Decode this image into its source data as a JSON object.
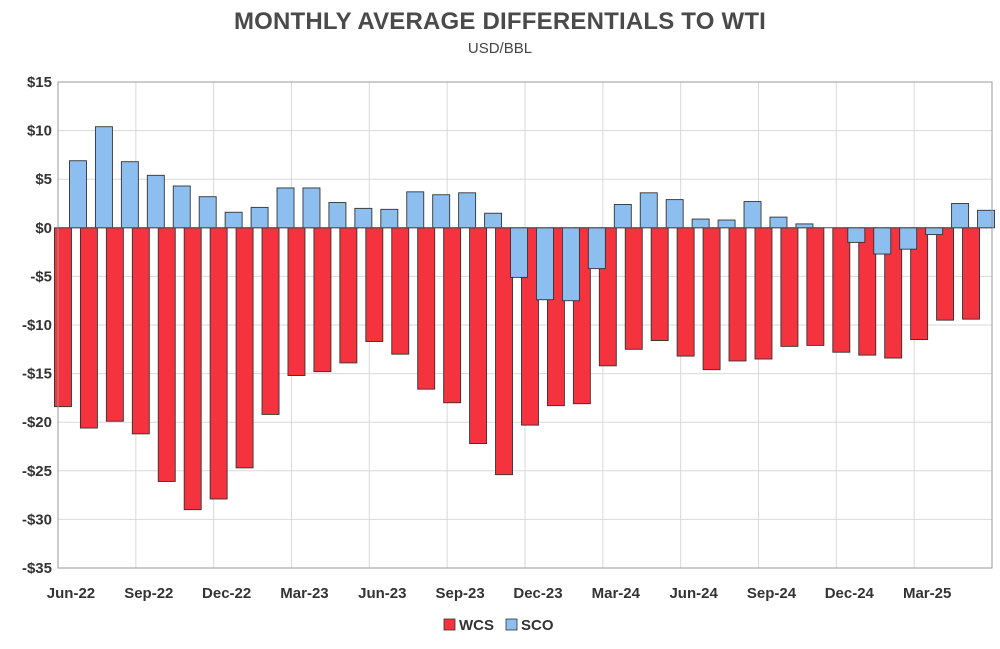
{
  "chart_data": {
    "type": "bar",
    "title": "MONTHLY AVERAGE DIFFERENTIALS TO WTI",
    "subtitle": "USD/BBL",
    "xlabel": "",
    "ylabel": "",
    "ylim": [
      -35,
      15
    ],
    "yticks": [
      15,
      10,
      5,
      0,
      -5,
      -10,
      -15,
      -20,
      -25,
      -30,
      -35
    ],
    "ytick_labels": [
      "$15",
      "$10",
      "$5",
      "$0",
      "-$5",
      "-$10",
      "-$15",
      "-$20",
      "-$25",
      "-$30",
      "-$35"
    ],
    "categories": [
      "Jun-22",
      "Jul-22",
      "Aug-22",
      "Sep-22",
      "Oct-22",
      "Nov-22",
      "Dec-22",
      "Jan-23",
      "Feb-23",
      "Mar-23",
      "Apr-23",
      "May-23",
      "Jun-23",
      "Jul-23",
      "Aug-23",
      "Sep-23",
      "Oct-23",
      "Nov-23",
      "Dec-23",
      "Jan-24",
      "Feb-24",
      "Mar-24",
      "Apr-24",
      "May-24",
      "Jun-24",
      "Jul-24",
      "Aug-24",
      "Sep-24",
      "Oct-24",
      "Nov-24",
      "Dec-24",
      "Jan-25",
      "Feb-25",
      "Mar-25",
      "Apr-25",
      "May-25"
    ],
    "xtick_labels": [
      "Jun-22",
      "Sep-22",
      "Dec-22",
      "Mar-23",
      "Jun-23",
      "Sep-23",
      "Dec-23",
      "Mar-24",
      "Jun-24",
      "Sep-24",
      "Dec-24",
      "Mar-25"
    ],
    "grid": true,
    "legend_position": "bottom-center",
    "series": [
      {
        "name": "WCS",
        "color": "#f5333f",
        "values": [
          -18.4,
          -20.6,
          -19.9,
          -21.2,
          -26.1,
          -29.0,
          -27.9,
          -24.7,
          -19.2,
          -15.2,
          -14.8,
          -13.9,
          -11.7,
          -13.0,
          -16.6,
          -18.0,
          -22.2,
          -25.4,
          -20.3,
          -18.3,
          -18.1,
          -14.2,
          -12.5,
          -11.6,
          -13.2,
          -14.6,
          -13.7,
          -13.5,
          -12.2,
          -12.1,
          -12.8,
          -13.1,
          -13.4,
          -11.5,
          -9.5,
          -9.4
        ]
      },
      {
        "name": "SCO",
        "color": "#8dbef0",
        "values": [
          6.9,
          10.4,
          6.8,
          5.4,
          4.3,
          3.2,
          1.6,
          2.1,
          4.1,
          4.1,
          2.6,
          2.0,
          1.9,
          3.7,
          3.4,
          3.6,
          1.5,
          -5.1,
          -7.4,
          -7.5,
          -4.2,
          2.4,
          3.6,
          2.9,
          0.9,
          0.8,
          2.7,
          1.1,
          0.4,
          0.0,
          -1.5,
          -2.7,
          -2.2,
          -0.7,
          2.5,
          1.8
        ]
      }
    ]
  }
}
